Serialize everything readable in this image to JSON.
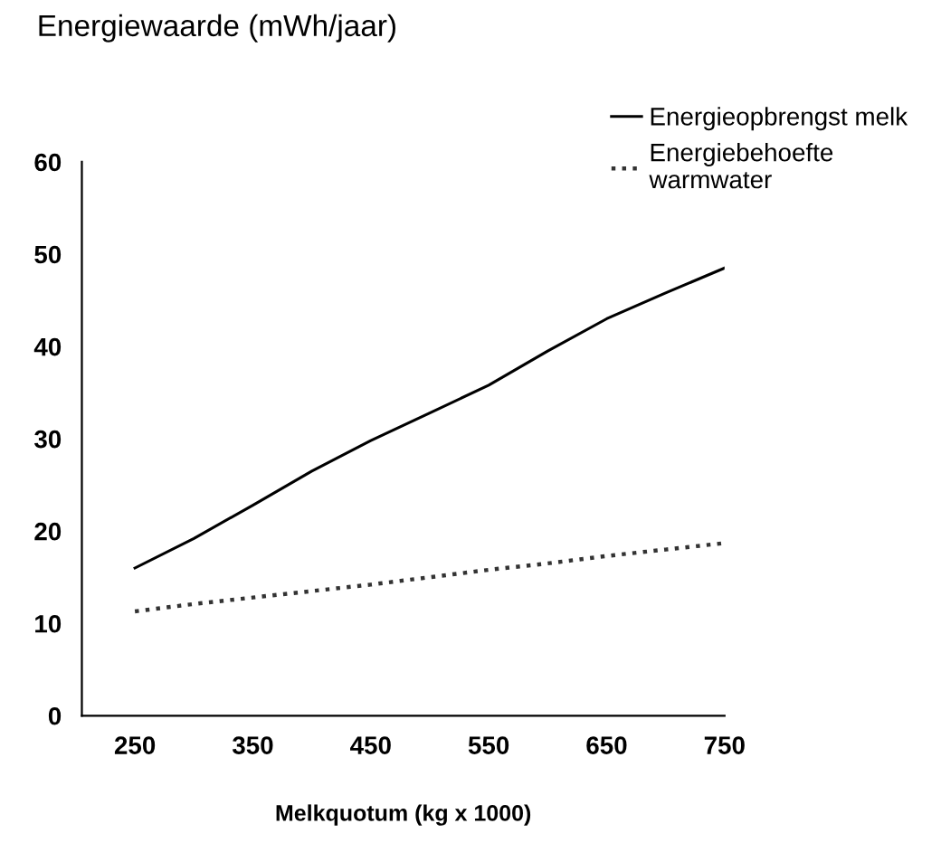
{
  "chart_data": {
    "type": "line",
    "title": "Energiewaarde (mWh/jaar)",
    "xlabel": "Melkquotum (kg x 1000)",
    "x": [
      250,
      300,
      350,
      400,
      450,
      500,
      550,
      600,
      650,
      700,
      750
    ],
    "series": [
      {
        "name": "Energieopbrengst melk",
        "color": "#000000",
        "line_style": "solid",
        "values": [
          16,
          19.2,
          22.8,
          26.5,
          29.8,
          32.8,
          35.8,
          39.5,
          43,
          45.8,
          48.5
        ]
      },
      {
        "name": "Energiebehoefte\nwarmwater",
        "color": "#333333",
        "line_style": "dotted",
        "values": [
          11.3,
          12.1,
          12.8,
          13.5,
          14.2,
          15,
          15.8,
          16.5,
          17.3,
          18,
          18.7
        ]
      }
    ],
    "xlim": [
      205,
      750
    ],
    "ylim": [
      0,
      60
    ],
    "xticks": [
      250,
      350,
      450,
      550,
      650,
      750
    ],
    "yticks": [
      0,
      10,
      20,
      30,
      40,
      50,
      60
    ],
    "grid": false,
    "legend": "top right",
    "marker": "none"
  }
}
